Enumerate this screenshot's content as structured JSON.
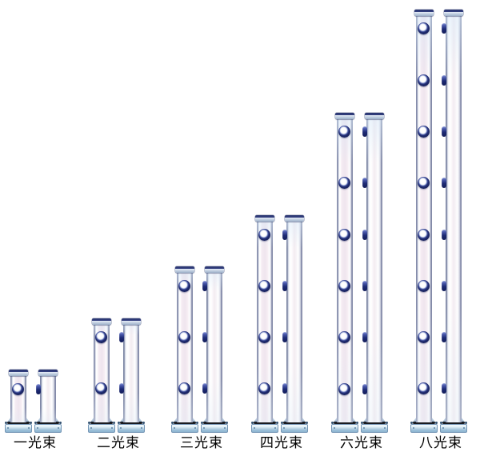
{
  "page": {
    "background": "#ffffff"
  },
  "lineup": {
    "models": [
      {
        "label": "一光束",
        "beams": 1
      },
      {
        "label": "二光束",
        "beams": 2
      },
      {
        "label": "三光束",
        "beams": 3
      },
      {
        "label": "四光束",
        "beams": 4
      },
      {
        "label": "六光束",
        "beams": 6
      },
      {
        "label": "八光束",
        "beams": 8
      }
    ]
  },
  "icons": {
    "front_beam_lens": "beam-lens-icon",
    "side_beam_lens": "side-lens-tab-icon"
  },
  "colors": {
    "background": "#ffffff",
    "lens_ring_navy": "#1a2566",
    "post_edge": "#8a90ad",
    "post_sheen_pink": "#efe5ee",
    "cap_navy": "#27336e",
    "cap_band": "#c3d0e2",
    "base_plate_blue": "#96bcd6",
    "joint_black": "#191b21",
    "label_text": "#000000"
  }
}
